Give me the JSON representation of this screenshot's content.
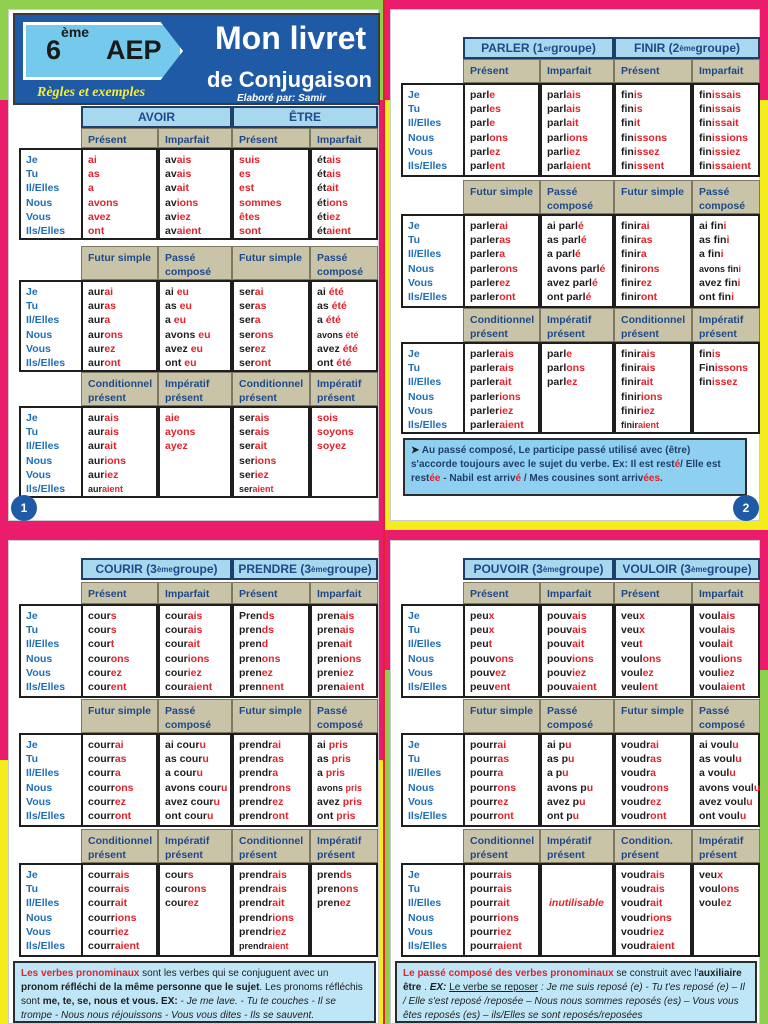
{
  "page1": {
    "grade": "6",
    "grade_sup": "ème",
    "level": "AEP",
    "title": "Mon livret",
    "subtitle": "de Conjugaison",
    "rules": "Règles et exemples",
    "author": "Elaboré par: Samir ACHROUR",
    "page_number": "1"
  },
  "page2": {
    "page_number": "2"
  },
  "pronouns": [
    "Je",
    "Tu",
    "Il/Elles",
    "Nous",
    "Vous",
    "Ils/Elles"
  ],
  "tenses": {
    "present": "Présent",
    "imparfait": "Imparfait",
    "futur": "Futur simple",
    "passe": "Passé composé",
    "conditionnel": "Conditionnel présent",
    "imperatif": "Impératif présent"
  },
  "avoir": {
    "name": "AVOIR",
    "present": [
      [
        "",
        "ai"
      ],
      [
        "",
        "as"
      ],
      [
        "",
        "a"
      ],
      [
        "",
        "avons"
      ],
      [
        "",
        "avez"
      ],
      [
        "",
        "ont"
      ]
    ],
    "imparfait": [
      [
        "av",
        "ais"
      ],
      [
        "av",
        "ais"
      ],
      [
        "av",
        "ait"
      ],
      [
        "av",
        "ions"
      ],
      [
        "av",
        "iez"
      ],
      [
        "av",
        "aient"
      ]
    ],
    "futur": [
      [
        "aur",
        "ai"
      ],
      [
        "aur",
        "as"
      ],
      [
        "aur",
        "a"
      ],
      [
        "aur",
        "ons"
      ],
      [
        "aur",
        "ez"
      ],
      [
        "aur",
        "ont"
      ]
    ],
    "passe": [
      [
        "ai ",
        "eu"
      ],
      [
        "as ",
        "eu"
      ],
      [
        "a ",
        "eu"
      ],
      [
        "avons ",
        "eu"
      ],
      [
        "avez ",
        "eu"
      ],
      [
        "ont ",
        "eu"
      ]
    ],
    "conditionnel": [
      [
        "aur",
        "ais"
      ],
      [
        "aur",
        "ais"
      ],
      [
        "aur",
        "ait"
      ],
      [
        "aur",
        "ions"
      ],
      [
        "aur",
        "iez"
      ],
      [
        "aur",
        "aient"
      ]
    ],
    "imperatif": [
      [
        "",
        "aie"
      ],
      [
        "",
        "ayons"
      ],
      [
        "",
        "ayez"
      ]
    ]
  },
  "etre": {
    "name": "ÊTRE",
    "present": [
      [
        "",
        "suis"
      ],
      [
        "",
        "es"
      ],
      [
        "",
        "est"
      ],
      [
        "",
        "sommes"
      ],
      [
        "",
        "êtes"
      ],
      [
        "",
        "sont"
      ]
    ],
    "imparfait": [
      [
        "ét",
        "ais"
      ],
      [
        "ét",
        "ais"
      ],
      [
        "ét",
        "ait"
      ],
      [
        "ét",
        "ions"
      ],
      [
        "ét",
        "iez"
      ],
      [
        "ét",
        "aient"
      ]
    ],
    "futur": [
      [
        "ser",
        "ai"
      ],
      [
        "ser",
        "as"
      ],
      [
        "ser",
        "a"
      ],
      [
        "ser",
        "ons"
      ],
      [
        "ser",
        "ez"
      ],
      [
        "ser",
        "ont"
      ]
    ],
    "passe": [
      [
        "ai ",
        "été"
      ],
      [
        "as ",
        "été"
      ],
      [
        "a ",
        "été"
      ],
      [
        "avons ",
        "été"
      ],
      [
        "avez ",
        "été"
      ],
      [
        "ont ",
        "été"
      ]
    ],
    "conditionnel": [
      [
        "ser",
        "ais"
      ],
      [
        "ser",
        "ais"
      ],
      [
        "ser",
        "ait"
      ],
      [
        "ser",
        "ions"
      ],
      [
        "ser",
        "iez"
      ],
      [
        "ser",
        "aient"
      ]
    ],
    "imperatif": [
      [
        "",
        "sois"
      ],
      [
        "",
        "soyons"
      ],
      [
        "",
        "soyez"
      ]
    ]
  },
  "parler": {
    "name": "PARLER (1",
    "sup": "er",
    "tail": " groupe)",
    "present": [
      [
        "parl",
        "e"
      ],
      [
        "parl",
        "es"
      ],
      [
        "parl",
        "e"
      ],
      [
        "parl",
        "ons"
      ],
      [
        "parl",
        "ez"
      ],
      [
        "parl",
        "ent"
      ]
    ],
    "imparfait": [
      [
        "parl",
        "ais"
      ],
      [
        "parl",
        "ais"
      ],
      [
        "parl",
        "ait"
      ],
      [
        "parl",
        "ions"
      ],
      [
        "parl",
        "iez"
      ],
      [
        "parl",
        "aient"
      ]
    ],
    "futur": [
      [
        "parler",
        "ai"
      ],
      [
        "parler",
        "as"
      ],
      [
        "parler",
        "a"
      ],
      [
        "parler",
        "ons"
      ],
      [
        "parler",
        "ez"
      ],
      [
        "parler",
        "ont"
      ]
    ],
    "passe": [
      [
        "ai parl",
        "é"
      ],
      [
        "as parl",
        "é"
      ],
      [
        "a parl",
        "é"
      ],
      [
        "avons parl",
        "é"
      ],
      [
        "avez parl",
        "é"
      ],
      [
        "ont parl",
        "é"
      ]
    ],
    "conditionnel": [
      [
        "parler",
        "ais"
      ],
      [
        "parler",
        "ais"
      ],
      [
        "parler",
        "ait"
      ],
      [
        "parler",
        "ions"
      ],
      [
        "parler",
        "iez"
      ],
      [
        "parler",
        "aient"
      ]
    ],
    "imperatif": [
      [
        "parl",
        "e"
      ],
      [
        "parl",
        "ons"
      ],
      [
        "parl",
        "ez"
      ]
    ]
  },
  "finir": {
    "name": "FINIR (2",
    "sup": "ème",
    "tail": " groupe)",
    "present": [
      [
        "fin",
        "is"
      ],
      [
        "fin",
        "is"
      ],
      [
        "fin",
        "it"
      ],
      [
        "fin",
        "issons"
      ],
      [
        "fin",
        "issez"
      ],
      [
        "fin",
        "issent"
      ]
    ],
    "imparfait": [
      [
        "fin",
        "issais"
      ],
      [
        "fin",
        "issais"
      ],
      [
        "fin",
        "issait"
      ],
      [
        "fin",
        "issions"
      ],
      [
        "fin",
        "issiez"
      ],
      [
        "fin",
        "issaient"
      ]
    ],
    "futur": [
      [
        "finir",
        "ai"
      ],
      [
        "finir",
        "as"
      ],
      [
        "finir",
        "a"
      ],
      [
        "finir",
        "ons"
      ],
      [
        "finir",
        "ez"
      ],
      [
        "finir",
        "ont"
      ]
    ],
    "passe": [
      [
        "ai fin",
        "i"
      ],
      [
        "as fin",
        "i"
      ],
      [
        "a fin",
        "i"
      ],
      [
        "avons fin",
        "i"
      ],
      [
        "avez fin",
        "i"
      ],
      [
        "ont fin",
        "i"
      ]
    ],
    "conditionnel": [
      [
        "finir",
        "ais"
      ],
      [
        "finir",
        "ais"
      ],
      [
        "finir",
        "ait"
      ],
      [
        "finir",
        "ions"
      ],
      [
        "finir",
        "iez"
      ],
      [
        "finir",
        "aient"
      ]
    ],
    "imperatif": [
      [
        "fin",
        "is"
      ],
      [
        "Fin",
        "issons"
      ],
      [
        "fin",
        "issez"
      ]
    ]
  },
  "note_page2": {
    "p1": "Au passé composé",
    "p2": ", Le participe passé utilisé avec (",
    "p3": "être",
    "p4": ") s'accorde toujours avec le sujet du verbe.  Ex:  Il est rest",
    "p5": "é",
    "p6": "/ Elle est rest",
    "p7": "ée",
    "p8": "   -  Nabil  est arriv",
    "p9": "é",
    "p10": " / Mes cousines sont arriv",
    "p11": "ées",
    "p12": "."
  },
  "courir": {
    "name": "COURIR (3",
    "sup": "ème",
    "tail": " groupe)",
    "present": [
      [
        "cour",
        "s"
      ],
      [
        "cour",
        "s"
      ],
      [
        "cour",
        "t"
      ],
      [
        "cour",
        "ons"
      ],
      [
        "cour",
        "ez"
      ],
      [
        "cour",
        "ent"
      ]
    ],
    "imparfait": [
      [
        "cour",
        "ais"
      ],
      [
        "cour",
        "ais"
      ],
      [
        "cour",
        "ait"
      ],
      [
        "cour",
        "ions"
      ],
      [
        "cour",
        "iez"
      ],
      [
        "cour",
        "aient"
      ]
    ],
    "futur": [
      [
        "courr",
        "ai"
      ],
      [
        "courr",
        "as"
      ],
      [
        "courr",
        "a"
      ],
      [
        "courr",
        "ons"
      ],
      [
        "courr",
        "ez"
      ],
      [
        "courr",
        "ont"
      ]
    ],
    "passe": [
      [
        "ai cour",
        "u"
      ],
      [
        "as cour",
        "u"
      ],
      [
        "a cour",
        "u"
      ],
      [
        "avons cour",
        "u"
      ],
      [
        "avez cour",
        "u"
      ],
      [
        "ont cour",
        "u"
      ]
    ],
    "conditionnel": [
      [
        "courr",
        "ais"
      ],
      [
        "courr",
        "ais"
      ],
      [
        "courr",
        "ait"
      ],
      [
        "courr",
        "ions"
      ],
      [
        "courr",
        "iez"
      ],
      [
        "courr",
        "aient"
      ]
    ],
    "imperatif": [
      [
        "cour",
        "s"
      ],
      [
        "cour",
        "ons"
      ],
      [
        "cour",
        "ez"
      ]
    ]
  },
  "prendre": {
    "name": "PRENDRE (3",
    "sup": "ème",
    "tail": " groupe)",
    "present": [
      [
        "Pren",
        "ds"
      ],
      [
        "pren",
        "ds"
      ],
      [
        "pren",
        "d"
      ],
      [
        "pren",
        "ons"
      ],
      [
        "pren",
        "ez"
      ],
      [
        "pren",
        "nent"
      ]
    ],
    "imparfait": [
      [
        "pren",
        "ais"
      ],
      [
        "pren",
        "ais"
      ],
      [
        "pren",
        "ait"
      ],
      [
        "pren",
        "ions"
      ],
      [
        "pren",
        "iez"
      ],
      [
        "pren",
        "aient"
      ]
    ],
    "futur": [
      [
        "prendr",
        "ai"
      ],
      [
        "prendr",
        "as"
      ],
      [
        "prendr",
        "a"
      ],
      [
        "prendr",
        "ons"
      ],
      [
        "prendr",
        "ez"
      ],
      [
        "prendr",
        "ont"
      ]
    ],
    "passe": [
      [
        "ai ",
        "pris"
      ],
      [
        "as ",
        "pris"
      ],
      [
        "a ",
        "pris"
      ],
      [
        "avons ",
        "pris"
      ],
      [
        "avez ",
        "pris"
      ],
      [
        "ont ",
        "pris"
      ]
    ],
    "conditionnel": [
      [
        "prendr",
        "ais"
      ],
      [
        "prendr",
        "ais"
      ],
      [
        "prendr",
        "ait"
      ],
      [
        "prendr",
        "ions"
      ],
      [
        "prendr",
        "iez"
      ],
      [
        "prendr",
        "aient"
      ]
    ],
    "imperatif": [
      [
        "pren",
        "ds"
      ],
      [
        "pren",
        "ons"
      ],
      [
        "pren",
        "ez"
      ]
    ]
  },
  "pouvoir": {
    "name": "POUVOIR (3",
    "sup": "ème",
    "tail": " groupe)",
    "present": [
      [
        "peu",
        "x"
      ],
      [
        "peu",
        "x"
      ],
      [
        "peu",
        "t"
      ],
      [
        "pouv",
        "ons"
      ],
      [
        "pouv",
        "ez"
      ],
      [
        "peuv",
        "ent"
      ]
    ],
    "imparfait": [
      [
        "pouv",
        "ais"
      ],
      [
        "pouv",
        "ais"
      ],
      [
        "pouv",
        "ait"
      ],
      [
        "pouv",
        "ions"
      ],
      [
        "pouv",
        "iez"
      ],
      [
        "pouv",
        "aient"
      ]
    ],
    "futur": [
      [
        "pourr",
        "ai"
      ],
      [
        "pourr",
        "as"
      ],
      [
        "pourr",
        "a"
      ],
      [
        "pourr",
        "ons"
      ],
      [
        "pourr",
        "ez"
      ],
      [
        "pourr",
        "ont"
      ]
    ],
    "passe": [
      [
        "ai p",
        "u"
      ],
      [
        "as p",
        "u"
      ],
      [
        "a p",
        "u"
      ],
      [
        "avons p",
        "u"
      ],
      [
        "avez p",
        "u"
      ],
      [
        "ont p",
        "u"
      ]
    ],
    "conditionnel": [
      [
        "pourr",
        "ais"
      ],
      [
        "pourr",
        "ais"
      ],
      [
        "pourr",
        "ait"
      ],
      [
        "pourr",
        "ions"
      ],
      [
        "pourr",
        "iez"
      ],
      [
        "pourr",
        "aient"
      ]
    ],
    "imperatif_note": "inutilisable"
  },
  "vouloir": {
    "name": "VOULOIR (3",
    "sup": "ème",
    "tail": " groupe)",
    "futur_label": "Futur simple",
    "conditionnel_label": "Condition. présent",
    "present": [
      [
        "veu",
        "x"
      ],
      [
        "veu",
        "x"
      ],
      [
        "veu",
        "t"
      ],
      [
        "voul",
        "ons"
      ],
      [
        "voul",
        "ez"
      ],
      [
        "veul",
        "ent"
      ]
    ],
    "imparfait": [
      [
        "voul",
        "ais"
      ],
      [
        "voul",
        "ais"
      ],
      [
        "voul",
        "ait"
      ],
      [
        "voul",
        "ions"
      ],
      [
        "voul",
        "iez"
      ],
      [
        "voul",
        "aient"
      ]
    ],
    "futur": [
      [
        "voudr",
        "ai"
      ],
      [
        "voudr",
        "as"
      ],
      [
        "voudr",
        "a"
      ],
      [
        "voudr",
        "ons"
      ],
      [
        "voudr",
        "ez"
      ],
      [
        "voudr",
        "ont"
      ]
    ],
    "passe": [
      [
        "ai voul",
        "u"
      ],
      [
        "as voul",
        "u"
      ],
      [
        "a voul",
        "u"
      ],
      [
        "avons voul",
        "u"
      ],
      [
        "avez voul",
        "u"
      ],
      [
        "ont voul",
        "u"
      ]
    ],
    "conditionnel": [
      [
        "voudr",
        "ais"
      ],
      [
        "voudr",
        "ais"
      ],
      [
        "voudr",
        "ait"
      ],
      [
        "voudr",
        "ions"
      ],
      [
        "voudr",
        "iez"
      ],
      [
        "voudr",
        "aient"
      ]
    ],
    "imperatif": [
      [
        "veu",
        "x"
      ],
      [
        "voul",
        "ons"
      ],
      [
        "voul",
        "ez"
      ]
    ]
  },
  "note_page3": {
    "a": "Les verbes pronominaux",
    "b": "  sont les verbes  qui se conjuguent avec un ",
    "c": "pronom réfléchi de la même personne que le sujet",
    "d": ".  Les pronoms réfléchis  sont ",
    "e": "me, te, se, nous et vous. EX:",
    "f": "  - Je me lave. - Tu te couches - Il se trompe - Nous nous réjouissons - Vous vous dites - Ils se sauvent."
  },
  "note_page4": {
    "a": "Le passé composé des verbes pronominaux",
    "b": " se construit avec l'",
    "c": "auxiliaire être",
    "d": " . ",
    "e": "EX:",
    "f": "Le verbe se reposer",
    "g": " :  Je me suis reposé (e) - Tu t'es reposé (e) – Il / Elle s'est reposé /reposée – Nous nous sommes reposés (es) – Vous vous êtes reposés (es) – ils/Elles se sont reposés/reposées"
  },
  "colors": {
    "brand": "#1f5aa6",
    "header": "#a7d8ee",
    "subheader": "#c9c3a8",
    "ending": "#e0232c",
    "pronoun": "#1e6fb7"
  }
}
